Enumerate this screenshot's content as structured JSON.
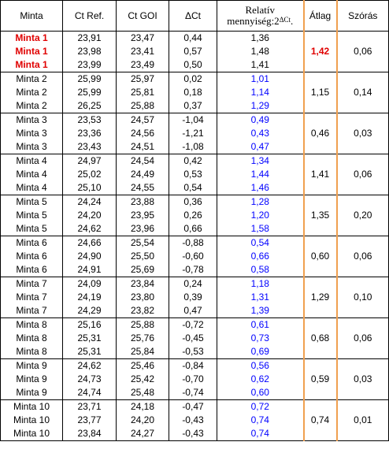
{
  "header": {
    "minta": "Minta",
    "ct_ref": "Ct Ref.",
    "ct_goi": "Ct GOI",
    "delta_ct": "ΔCt",
    "relativ_line1": "Relatív",
    "relativ_line2": "mennyiség:2",
    "relativ_sup": "ΔCt",
    "relativ_dot": ".",
    "atlag": "Átlag",
    "szoras": "Szórás"
  },
  "colors": {
    "highlight_red": "#e00000",
    "relative_blue": "#0000ff",
    "atlag_border_orange": "#f0a050"
  },
  "groups": [
    {
      "rows": [
        {
          "name": "Minta 1",
          "ct_ref": "23,91",
          "ct_goi": "23,47",
          "dct": "0,44",
          "rel": "1,36"
        },
        {
          "name": "Minta 1",
          "ct_ref": "23,98",
          "ct_goi": "23,41",
          "dct": "0,57",
          "rel": "1,48"
        },
        {
          "name": "Minta 1",
          "ct_ref": "23,99",
          "ct_goi": "23,49",
          "dct": "0,50",
          "rel": "1,41"
        }
      ],
      "atlag": "1,42",
      "szoras": "0,06",
      "highlight": true
    },
    {
      "rows": [
        {
          "name": "Minta 2",
          "ct_ref": "25,99",
          "ct_goi": "25,97",
          "dct": "0,02",
          "rel": "1,01"
        },
        {
          "name": "Minta 2",
          "ct_ref": "25,99",
          "ct_goi": "25,81",
          "dct": "0,18",
          "rel": "1,14"
        },
        {
          "name": "Minta 2",
          "ct_ref": "26,25",
          "ct_goi": "25,88",
          "dct": "0,37",
          "rel": "1,29"
        }
      ],
      "atlag": "1,15",
      "szoras": "0,14",
      "highlight": false
    },
    {
      "rows": [
        {
          "name": "Minta 3",
          "ct_ref": "23,53",
          "ct_goi": "24,57",
          "dct": "-1,04",
          "rel": "0,49"
        },
        {
          "name": "Minta 3",
          "ct_ref": "23,36",
          "ct_goi": "24,56",
          "dct": "-1,21",
          "rel": "0,43"
        },
        {
          "name": "Minta 3",
          "ct_ref": "23,43",
          "ct_goi": "24,51",
          "dct": "-1,08",
          "rel": "0,47"
        }
      ],
      "atlag": "0,46",
      "szoras": "0,03",
      "highlight": false
    },
    {
      "rows": [
        {
          "name": "Minta 4",
          "ct_ref": "24,97",
          "ct_goi": "24,54",
          "dct": "0,42",
          "rel": "1,34"
        },
        {
          "name": "Minta 4",
          "ct_ref": "25,02",
          "ct_goi": "24,49",
          "dct": "0,53",
          "rel": "1,44"
        },
        {
          "name": "Minta 4",
          "ct_ref": "25,10",
          "ct_goi": "24,55",
          "dct": "0,54",
          "rel": "1,46"
        }
      ],
      "atlag": "1,41",
      "szoras": "0,06",
      "highlight": false
    },
    {
      "rows": [
        {
          "name": "Minta 5",
          "ct_ref": "24,24",
          "ct_goi": "23,88",
          "dct": "0,36",
          "rel": "1,28"
        },
        {
          "name": "Minta 5",
          "ct_ref": "24,20",
          "ct_goi": "23,95",
          "dct": "0,26",
          "rel": "1,20"
        },
        {
          "name": "Minta 5",
          "ct_ref": "24,62",
          "ct_goi": "23,96",
          "dct": "0,66",
          "rel": "1,58"
        }
      ],
      "atlag": "1,35",
      "szoras": "0,20",
      "highlight": false
    },
    {
      "rows": [
        {
          "name": "Minta 6",
          "ct_ref": "24,66",
          "ct_goi": "25,54",
          "dct": "-0,88",
          "rel": "0,54"
        },
        {
          "name": "Minta 6",
          "ct_ref": "24,90",
          "ct_goi": "25,50",
          "dct": "-0,60",
          "rel": "0,66"
        },
        {
          "name": "Minta 6",
          "ct_ref": "24,91",
          "ct_goi": "25,69",
          "dct": "-0,78",
          "rel": "0,58"
        }
      ],
      "atlag": "0,60",
      "szoras": "0,06",
      "highlight": false
    },
    {
      "rows": [
        {
          "name": "Minta 7",
          "ct_ref": "24,09",
          "ct_goi": "23,84",
          "dct": "0,24",
          "rel": "1,18"
        },
        {
          "name": "Minta 7",
          "ct_ref": "24,19",
          "ct_goi": "23,80",
          "dct": "0,39",
          "rel": "1,31"
        },
        {
          "name": "Minta 7",
          "ct_ref": "24,29",
          "ct_goi": "23,82",
          "dct": "0,47",
          "rel": "1,39"
        }
      ],
      "atlag": "1,29",
      "szoras": "0,10",
      "highlight": false
    },
    {
      "rows": [
        {
          "name": "Minta 8",
          "ct_ref": "25,16",
          "ct_goi": "25,88",
          "dct": "-0,72",
          "rel": "0,61"
        },
        {
          "name": "Minta 8",
          "ct_ref": "25,31",
          "ct_goi": "25,76",
          "dct": "-0,45",
          "rel": "0,73"
        },
        {
          "name": "Minta 8",
          "ct_ref": "25,31",
          "ct_goi": "25,84",
          "dct": "-0,53",
          "rel": "0,69"
        }
      ],
      "atlag": "0,68",
      "szoras": "0,06",
      "highlight": false
    },
    {
      "rows": [
        {
          "name": "Minta 9",
          "ct_ref": "24,62",
          "ct_goi": "25,46",
          "dct": "-0,84",
          "rel": "0,56"
        },
        {
          "name": "Minta 9",
          "ct_ref": "24,73",
          "ct_goi": "25,42",
          "dct": "-0,70",
          "rel": "0,62"
        },
        {
          "name": "Minta 9",
          "ct_ref": "24,74",
          "ct_goi": "25,48",
          "dct": "-0,74",
          "rel": "0,60"
        }
      ],
      "atlag": "0,59",
      "szoras": "0,03",
      "highlight": false
    },
    {
      "rows": [
        {
          "name": "Minta 10",
          "ct_ref": "23,71",
          "ct_goi": "24,18",
          "dct": "-0,47",
          "rel": "0,72"
        },
        {
          "name": "Minta 10",
          "ct_ref": "23,77",
          "ct_goi": "24,20",
          "dct": "-0,43",
          "rel": "0,74"
        },
        {
          "name": "Minta 10",
          "ct_ref": "23,84",
          "ct_goi": "24,27",
          "dct": "-0,43",
          "rel": "0,74"
        }
      ],
      "atlag": "0,74",
      "szoras": "0,01",
      "highlight": false
    }
  ]
}
